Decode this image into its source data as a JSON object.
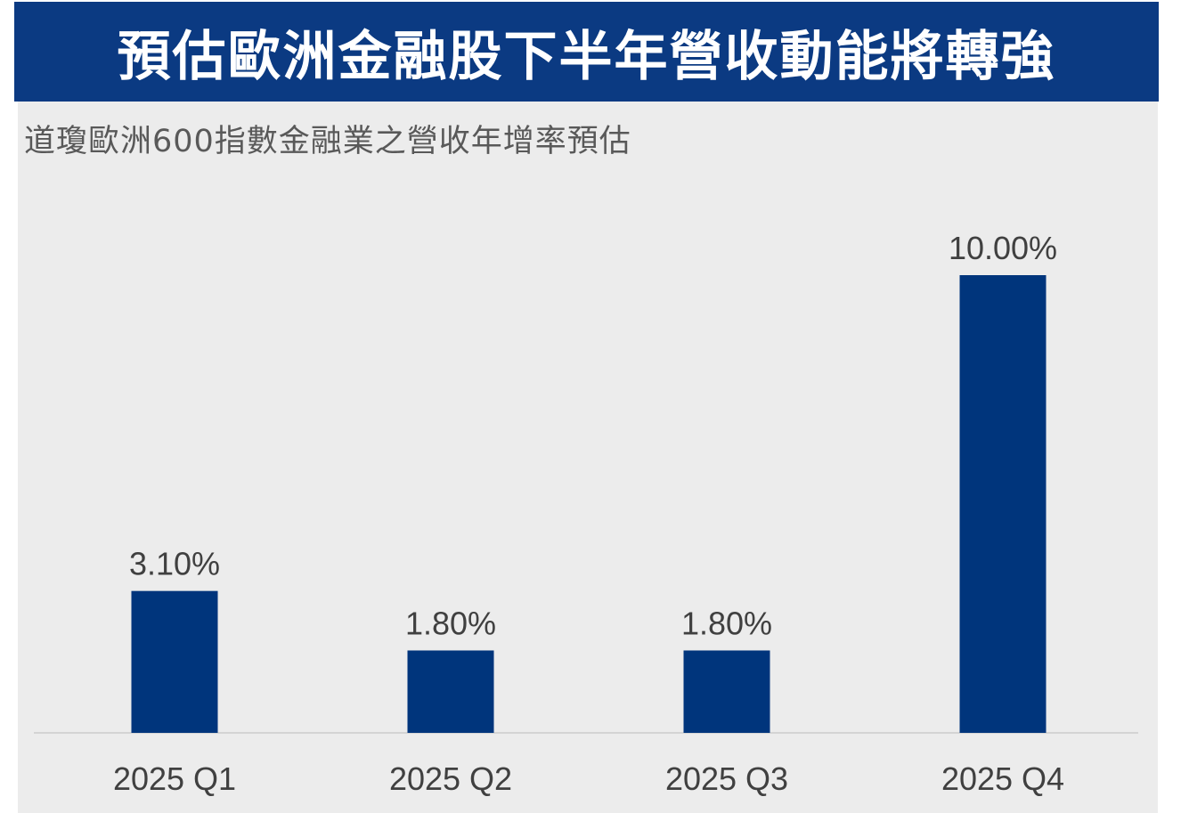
{
  "header": {
    "title": "預估歐洲金融股下半年營收動能將轉強"
  },
  "colors": {
    "header_band": "#0b3a82",
    "bar": "#00357c",
    "panel": "#ececec",
    "text": "#404040"
  },
  "chart_data": {
    "type": "bar",
    "title": "道瓊歐洲600指數金融業之營收年增率預估",
    "xlabel": "",
    "ylabel": "",
    "categories": [
      "2025 Q1",
      "2025 Q2",
      "2025 Q3",
      "2025 Q4"
    ],
    "values": [
      3.1,
      1.8,
      1.8,
      10.0
    ],
    "value_labels": [
      "3.10%",
      "1.80%",
      "1.80%",
      "10.00%"
    ],
    "unit": "%",
    "ylim": [
      0,
      10.0
    ],
    "grid": false,
    "legend": "none"
  }
}
